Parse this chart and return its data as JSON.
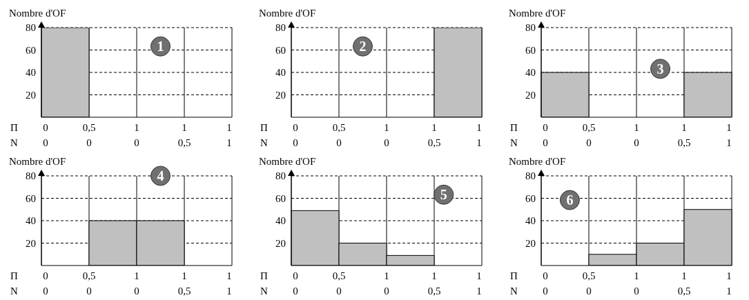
{
  "chart_data": [
    {
      "type": "bar",
      "ylabel": "Nombre d'OF",
      "categories": [
        null,
        null,
        null,
        null
      ],
      "values": [
        80,
        0,
        0,
        0
      ],
      "color": "#c0c0c0",
      "ylim": [
        0,
        80
      ],
      "yticks": [
        20,
        40,
        60,
        80
      ],
      "grid": true,
      "annotations": [
        "1",
        "Π",
        "0",
        "0,5",
        "1",
        "1",
        "1",
        "N",
        "0",
        "0",
        "0",
        "0,5",
        "1"
      ]
    },
    {
      "type": "bar",
      "ylabel": "Nombre d'OF",
      "categories": [
        null,
        null,
        null,
        null
      ],
      "values": [
        0,
        0,
        0,
        80
      ],
      "color": "#c0c0c0",
      "ylim": [
        0,
        80
      ],
      "yticks": [
        20,
        40,
        60,
        80
      ],
      "grid": true,
      "annotations": [
        "2",
        "Π",
        "0",
        "0,5",
        "1",
        "1",
        "1",
        "N",
        "0",
        "0",
        "0",
        "0,5",
        "1"
      ]
    },
    {
      "type": "bar",
      "ylabel": "Nombre d'OF",
      "categories": [
        null,
        null,
        null,
        null
      ],
      "values": [
        40,
        0,
        0,
        40
      ],
      "color": "#c0c0c0",
      "ylim": [
        0,
        80
      ],
      "yticks": [
        20,
        40,
        60,
        80
      ],
      "grid": true,
      "annotations": [
        "3",
        "Π",
        "0",
        "0,5",
        "1",
        "1",
        "1",
        "N",
        "0",
        "0",
        "0",
        "0,5",
        "1"
      ]
    },
    {
      "type": "bar",
      "ylabel": "Nombre d'OF",
      "categories": [
        null,
        null,
        null,
        null
      ],
      "values": [
        0,
        40,
        40,
        0
      ],
      "color": "#c0c0c0",
      "ylim": [
        0,
        80
      ],
      "yticks": [
        20,
        40,
        60,
        80
      ],
      "grid": true,
      "annotations": [
        "4",
        "Π",
        "0",
        "0,5",
        "1",
        "1",
        "1",
        "N",
        "0",
        "0",
        "0",
        "0,5",
        "1"
      ]
    },
    {
      "type": "bar",
      "ylabel": "Nombre d'OF",
      "categories": [
        null,
        null,
        null,
        null
      ],
      "values": [
        49,
        20,
        9,
        0
      ],
      "color": "#c0c0c0",
      "ylim": [
        0,
        80
      ],
      "yticks": [
        20,
        40,
        60,
        80
      ],
      "grid": true,
      "annotations": [
        "5",
        "Π",
        "0",
        "0,5",
        "1",
        "1",
        "1",
        "N",
        "0",
        "0",
        "0",
        "0,5",
        "1"
      ]
    },
    {
      "type": "bar",
      "ylabel": "Nombre d'OF",
      "categories": [
        null,
        null,
        null,
        null
      ],
      "values": [
        0,
        10,
        20,
        50
      ],
      "color": "#c0c0c0",
      "ylim": [
        0,
        80
      ],
      "yticks": [
        20,
        40,
        60,
        80
      ],
      "grid": true,
      "annotations": [
        "6",
        "Π",
        "0",
        "0,5",
        "1",
        "1",
        "1",
        "N",
        "0",
        "0",
        "0",
        "0,5",
        "1"
      ]
    }
  ]
}
